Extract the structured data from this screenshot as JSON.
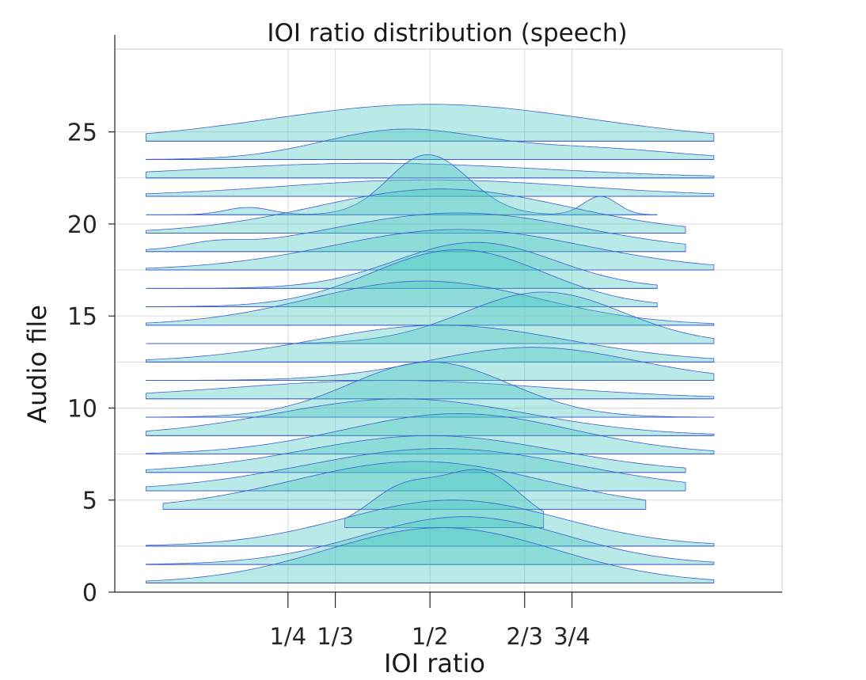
{
  "chart_data": {
    "type": "ridgeline",
    "title": "IOI ratio distribution (speech)",
    "xlabel": "IOI ratio",
    "ylabel": "Audio file",
    "yticks": [
      0,
      5,
      10,
      15,
      20,
      25
    ],
    "ylim": [
      0,
      29.5
    ],
    "xlim": [
      -0.055,
      1.12
    ],
    "xticks": [
      {
        "value": 0.25,
        "label": "1/4"
      },
      {
        "value": 0.3333,
        "label": "1/3"
      },
      {
        "value": 0.5,
        "label": "1/2"
      },
      {
        "value": 0.6667,
        "label": "2/3"
      },
      {
        "value": 0.75,
        "label": "3/4"
      }
    ],
    "grid": true,
    "colors": {
      "fill": "#40c4c0",
      "edge": "#3a5fd0",
      "baseline": "#3a56c8"
    },
    "series": [
      {
        "file": 1,
        "peaks": [
          [
            0.52,
            0.2,
            3.0
          ]
        ],
        "tail_left": 0.0,
        "tail_right": 1.0
      },
      {
        "file": 2,
        "peaks": [
          [
            0.56,
            0.18,
            2.6
          ]
        ],
        "tail_left": 0.0,
        "tail_right": 1.0
      },
      {
        "file": 3,
        "peaks": [
          [
            0.54,
            0.19,
            2.5
          ]
        ],
        "tail_left": 0.0,
        "tail_right": 1.0
      },
      {
        "file": 4,
        "peaks": [
          [
            0.45,
            0.06,
            2.0
          ],
          [
            0.59,
            0.07,
            3.0
          ]
        ],
        "tail_left": 0.35,
        "tail_right": 0.7
      },
      {
        "file": 5,
        "peaks": [
          [
            0.48,
            0.22,
            2.6
          ]
        ],
        "tail_left": 0.03,
        "tail_right": 0.88
      },
      {
        "file": 6,
        "peaks": [
          [
            0.52,
            0.24,
            2.3
          ]
        ],
        "tail_left": 0.0,
        "tail_right": 0.95
      },
      {
        "file": 7,
        "peaks": [
          [
            0.5,
            0.22,
            2.0
          ]
        ],
        "tail_left": 0.0,
        "tail_right": 0.95
      },
      {
        "file": 8,
        "peaks": [
          [
            0.55,
            0.2,
            2.2
          ]
        ],
        "tail_left": 0.0,
        "tail_right": 1.0
      },
      {
        "file": 9,
        "peaks": [
          [
            0.45,
            0.22,
            2.0
          ]
        ],
        "tail_left": 0.0,
        "tail_right": 1.0
      },
      {
        "file": 10,
        "peaks": [
          [
            0.5,
            0.14,
            3.0
          ]
        ],
        "tail_left": 0.0,
        "tail_right": 1.0
      },
      {
        "file": 11,
        "peaks": [
          [
            0.43,
            0.28,
            1.0
          ]
        ],
        "tail_left": 0.0,
        "tail_right": 1.0
      },
      {
        "file": 12,
        "peaks": [
          [
            0.68,
            0.18,
            1.8
          ]
        ],
        "tail_left": 0.0,
        "tail_right": 1.0
      },
      {
        "file": 13,
        "peaks": [
          [
            0.52,
            0.22,
            2.0
          ]
        ],
        "tail_left": 0.0,
        "tail_right": 1.0
      },
      {
        "file": 14,
        "peaks": [
          [
            0.7,
            0.14,
            2.8
          ]
        ],
        "tail_left": 0.0,
        "tail_right": 1.0
      },
      {
        "file": 15,
        "peaks": [
          [
            0.49,
            0.2,
            2.4
          ]
        ],
        "tail_left": 0.0,
        "tail_right": 1.0
      },
      {
        "file": 16,
        "peaks": [
          [
            0.55,
            0.15,
            3.1
          ]
        ],
        "tail_left": 0.0,
        "tail_right": 0.9
      },
      {
        "file": 17,
        "peaks": [
          [
            0.58,
            0.14,
            2.5
          ]
        ],
        "tail_left": 0.0,
        "tail_right": 0.9
      },
      {
        "file": 18,
        "peaks": [
          [
            0.55,
            0.22,
            2.2
          ]
        ],
        "tail_left": 0.0,
        "tail_right": 1.0
      },
      {
        "file": 19,
        "peaks": [
          [
            0.12,
            0.05,
            0.3
          ],
          [
            0.55,
            0.22,
            2.1
          ]
        ],
        "tail_left": 0.0,
        "tail_right": 0.95
      },
      {
        "file": 20,
        "peaks": [
          [
            0.52,
            0.22,
            2.4
          ]
        ],
        "tail_left": 0.0,
        "tail_right": 0.95
      },
      {
        "file": 21,
        "peaks": [
          [
            0.18,
            0.04,
            0.4
          ],
          [
            0.47,
            0.06,
            1.0
          ],
          [
            0.51,
            0.07,
            2.4
          ],
          [
            0.8,
            0.03,
            1.0
          ]
        ],
        "tail_left": 0.0,
        "tail_right": 0.9
      },
      {
        "file": 22,
        "peaks": [
          [
            0.5,
            0.26,
            0.9
          ]
        ],
        "tail_left": 0.0,
        "tail_right": 1.0
      },
      {
        "file": 23,
        "peaks": [
          [
            0.4,
            0.3,
            0.8
          ]
        ],
        "tail_left": 0.0,
        "tail_right": 1.0
      },
      {
        "file": 24,
        "peaks": [
          [
            0.45,
            0.14,
            1.6
          ],
          [
            0.78,
            0.15,
            0.6
          ]
        ],
        "tail_left": 0.0,
        "tail_right": 1.0
      },
      {
        "file": 25,
        "peaks": [
          [
            0.5,
            0.28,
            2.0
          ]
        ],
        "tail_left": 0.0,
        "tail_right": 1.0
      }
    ]
  }
}
